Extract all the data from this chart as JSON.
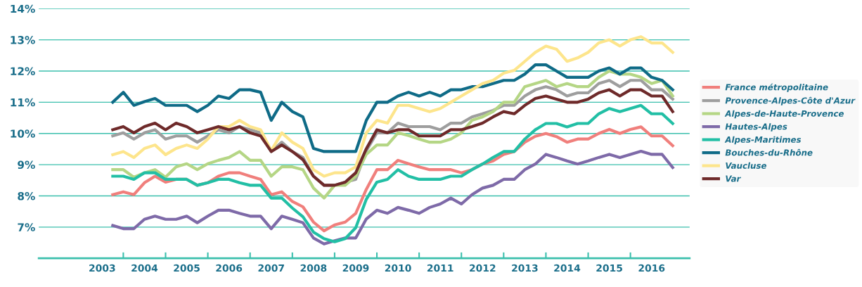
{
  "chart_data": {
    "type": "line",
    "x": [
      2003.25,
      2003.5,
      2003.75,
      2004,
      2004.25,
      2004.5,
      2004.75,
      2005,
      2005.25,
      2005.5,
      2005.75,
      2006,
      2006.25,
      2006.5,
      2006.75,
      2007,
      2007.25,
      2007.5,
      2007.75,
      2008,
      2008.25,
      2008.5,
      2008.75,
      2009,
      2009.25,
      2009.5,
      2009.75,
      2010,
      2010.25,
      2010.5,
      2010.75,
      2011,
      2011.25,
      2011.5,
      2011.75,
      2012,
      2012.25,
      2012.5,
      2012.75,
      2013,
      2013.25,
      2013.5,
      2013.75,
      2014,
      2014.25,
      2014.5,
      2014.75,
      2015,
      2015.25,
      2015.5,
      2015.75,
      2016,
      2016.25,
      2016.5
    ],
    "xlim": [
      2001.5,
      2016.9
    ],
    "xticks": [
      {
        "value": 2003,
        "label": "2003"
      },
      {
        "value": 2004,
        "label": "2004"
      },
      {
        "value": 2005,
        "label": "2005"
      },
      {
        "value": 2006,
        "label": "2006"
      },
      {
        "value": 2007,
        "label": "2007"
      },
      {
        "value": 2008,
        "label": "2008"
      },
      {
        "value": 2009,
        "label": "2009"
      },
      {
        "value": 2010,
        "label": "2010"
      },
      {
        "value": 2011,
        "label": "2011"
      },
      {
        "value": 2012,
        "label": "2012"
      },
      {
        "value": 2013,
        "label": "2013"
      },
      {
        "value": 2014,
        "label": "2014"
      },
      {
        "value": 2015,
        "label": "2015"
      },
      {
        "value": 2016,
        "label": "2016"
      },
      {
        "value": 2003.5,
        "label": null
      },
      {
        "value": 2004.5,
        "label": null
      },
      {
        "value": 2005.5,
        "label": null
      },
      {
        "value": 2006.5,
        "label": null
      },
      {
        "value": 2007.5,
        "label": null
      },
      {
        "value": 2008.5,
        "label": null
      },
      {
        "value": 2009.5,
        "label": null
      },
      {
        "value": 2010.5,
        "label": null
      },
      {
        "value": 2011.5,
        "label": null
      },
      {
        "value": 2012.5,
        "label": null
      },
      {
        "value": 2013.5,
        "label": null
      },
      {
        "value": 2014.5,
        "label": null
      },
      {
        "value": 2015.5,
        "label": null
      }
    ],
    "ylim": [
      6,
      14
    ],
    "yticks": [
      {
        "value": 7,
        "label": "7%"
      },
      {
        "value": 8,
        "label": "8%"
      },
      {
        "value": 9,
        "label": "9%"
      },
      {
        "value": 10,
        "label": "10%"
      },
      {
        "value": 11,
        "label": "11%"
      },
      {
        "value": 12,
        "label": "12%"
      },
      {
        "value": 13,
        "label": "13%"
      },
      {
        "value": 14,
        "label": "14%"
      }
    ],
    "grid": "y",
    "legend": "right",
    "marker": "none",
    "line_style": "solid",
    "series": [
      {
        "name": "France métropolitaine",
        "color": "#f07f7c",
        "values": [
          8.04,
          8.13,
          8.04,
          8.42,
          8.63,
          8.44,
          8.53,
          8.53,
          8.34,
          8.42,
          8.63,
          8.74,
          8.74,
          8.63,
          8.53,
          8.04,
          8.13,
          7.82,
          7.65,
          7.16,
          6.88,
          7.07,
          7.16,
          7.44,
          8.21,
          8.84,
          8.84,
          9.14,
          9.03,
          8.93,
          8.84,
          8.84,
          8.84,
          8.74,
          8.84,
          9.02,
          9.12,
          9.33,
          9.42,
          9.72,
          9.91,
          10.0,
          9.9,
          9.72,
          9.82,
          9.82,
          10.0,
          10.13,
          10.0,
          10.13,
          10.21,
          9.92,
          9.92,
          9.61
        ]
      },
      {
        "name": "Provence-Alpes-Côte d'Azur",
        "color": "#9e9e9e",
        "values": [
          9.92,
          10.02,
          9.82,
          10.02,
          10.12,
          9.82,
          9.92,
          9.92,
          9.72,
          9.92,
          10.12,
          10.02,
          10.22,
          10.12,
          10.02,
          9.42,
          9.72,
          9.42,
          9.23,
          8.63,
          8.34,
          8.34,
          8.44,
          8.53,
          9.44,
          10.02,
          10.02,
          10.33,
          10.22,
          10.22,
          10.22,
          10.12,
          10.33,
          10.33,
          10.53,
          10.63,
          10.74,
          10.9,
          10.9,
          11.2,
          11.4,
          11.5,
          11.4,
          11.2,
          11.3,
          11.3,
          11.6,
          11.7,
          11.5,
          11.7,
          11.7,
          11.4,
          11.4,
          11.1
        ]
      },
      {
        "name": "Alpes-de-Haute-Provence",
        "color": "#b5d685",
        "values": [
          8.84,
          8.84,
          8.6,
          8.74,
          8.84,
          8.6,
          8.93,
          9.03,
          8.84,
          9.03,
          9.14,
          9.23,
          9.42,
          9.14,
          9.14,
          8.63,
          8.93,
          8.93,
          8.84,
          8.25,
          7.93,
          8.34,
          8.34,
          8.63,
          9.33,
          9.63,
          9.63,
          10.02,
          9.93,
          9.82,
          9.72,
          9.72,
          9.82,
          10.02,
          10.42,
          10.53,
          10.7,
          11.0,
          11.0,
          11.5,
          11.6,
          11.7,
          11.5,
          11.6,
          11.5,
          11.5,
          11.8,
          12.0,
          11.9,
          11.9,
          11.8,
          11.6,
          11.7,
          11.2
        ]
      },
      {
        "name": "Hautes-Alpes",
        "color": "#7e6aa8",
        "values": [
          7.05,
          6.95,
          6.95,
          7.25,
          7.35,
          7.25,
          7.25,
          7.35,
          7.14,
          7.35,
          7.54,
          7.54,
          7.44,
          7.35,
          7.35,
          6.95,
          7.35,
          7.25,
          7.14,
          6.65,
          6.46,
          6.56,
          6.65,
          6.65,
          7.26,
          7.54,
          7.44,
          7.63,
          7.54,
          7.44,
          7.63,
          7.74,
          7.93,
          7.74,
          8.04,
          8.25,
          8.34,
          8.53,
          8.53,
          8.84,
          9.02,
          9.33,
          9.23,
          9.12,
          9.02,
          9.12,
          9.23,
          9.33,
          9.23,
          9.33,
          9.43,
          9.33,
          9.33,
          8.91
        ]
      },
      {
        "name": "Alpes-Maritimes",
        "color": "#22bfa5",
        "values": [
          8.63,
          8.63,
          8.53,
          8.74,
          8.74,
          8.53,
          8.53,
          8.53,
          8.34,
          8.42,
          8.53,
          8.53,
          8.42,
          8.34,
          8.34,
          7.93,
          7.93,
          7.61,
          7.33,
          6.84,
          6.63,
          6.53,
          6.63,
          6.98,
          7.89,
          8.44,
          8.53,
          8.84,
          8.63,
          8.53,
          8.53,
          8.53,
          8.63,
          8.63,
          8.84,
          9.02,
          9.23,
          9.42,
          9.42,
          9.82,
          10.12,
          10.32,
          10.32,
          10.21,
          10.32,
          10.32,
          10.63,
          10.8,
          10.7,
          10.8,
          10.9,
          10.63,
          10.63,
          10.32
        ]
      },
      {
        "name": "Bouches-du-Rhône",
        "color": "#0f6b87",
        "values": [
          11.0,
          11.32,
          10.9,
          11.02,
          11.12,
          10.9,
          10.9,
          10.9,
          10.7,
          10.9,
          11.2,
          11.12,
          11.4,
          11.4,
          11.32,
          10.42,
          11.0,
          10.7,
          10.53,
          9.52,
          9.42,
          9.42,
          9.42,
          9.42,
          10.42,
          11.0,
          11.0,
          11.2,
          11.32,
          11.2,
          11.32,
          11.2,
          11.4,
          11.4,
          11.5,
          11.5,
          11.6,
          11.7,
          11.7,
          11.9,
          12.2,
          12.2,
          12.0,
          11.8,
          11.8,
          11.8,
          12.0,
          12.1,
          11.9,
          12.1,
          12.1,
          11.8,
          11.7,
          11.4
        ]
      },
      {
        "name": "Vaucluse",
        "color": "#fde58c",
        "values": [
          9.32,
          9.42,
          9.23,
          9.52,
          9.63,
          9.32,
          9.52,
          9.63,
          9.52,
          9.82,
          10.22,
          10.22,
          10.42,
          10.22,
          10.12,
          9.45,
          10.02,
          9.72,
          9.52,
          8.84,
          8.63,
          8.74,
          8.74,
          8.93,
          10.02,
          10.42,
          10.33,
          10.9,
          10.9,
          10.8,
          10.7,
          10.8,
          11.0,
          11.2,
          11.4,
          11.6,
          11.7,
          11.93,
          12.02,
          12.31,
          12.6,
          12.8,
          12.7,
          12.31,
          12.42,
          12.6,
          12.9,
          13.0,
          12.8,
          13.0,
          13.1,
          12.9,
          12.9,
          12.6
        ]
      },
      {
        "name": "Var",
        "color": "#6e2a2a",
        "values": [
          10.12,
          10.22,
          10.02,
          10.22,
          10.33,
          10.12,
          10.33,
          10.22,
          10.02,
          10.12,
          10.22,
          10.12,
          10.22,
          10.02,
          9.92,
          9.42,
          9.63,
          9.42,
          9.16,
          8.63,
          8.34,
          8.34,
          8.44,
          8.74,
          9.51,
          10.12,
          10.02,
          10.12,
          10.12,
          9.92,
          9.92,
          9.92,
          10.12,
          10.12,
          10.22,
          10.33,
          10.53,
          10.7,
          10.63,
          10.9,
          11.12,
          11.2,
          11.1,
          11.0,
          11.0,
          11.1,
          11.3,
          11.4,
          11.2,
          11.4,
          11.4,
          11.2,
          11.2,
          10.7
        ]
      }
    ]
  }
}
